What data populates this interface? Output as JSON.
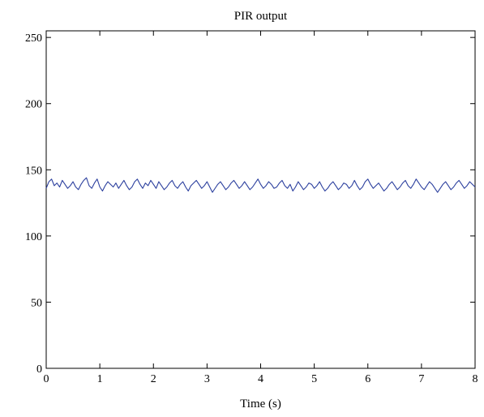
{
  "chart_data": {
    "type": "line",
    "title": "PIR output",
    "xlabel": "Time (s)",
    "ylabel": "",
    "xlim": [
      0,
      8
    ],
    "ylim": [
      0,
      255
    ],
    "xticks": [
      "0",
      "1",
      "2",
      "3",
      "4",
      "5",
      "6",
      "7",
      "8"
    ],
    "yticks": [
      "0",
      "50",
      "100",
      "150",
      "200",
      "250"
    ],
    "grid": false,
    "legend": "none",
    "series": [
      {
        "color": "#2b3f9e",
        "x": [
          0.0,
          0.05,
          0.1,
          0.15,
          0.2,
          0.25,
          0.3,
          0.35,
          0.4,
          0.45,
          0.5,
          0.55,
          0.6,
          0.65,
          0.7,
          0.75,
          0.8,
          0.85,
          0.9,
          0.95,
          1.0,
          1.05,
          1.1,
          1.15,
          1.2,
          1.25,
          1.3,
          1.35,
          1.4,
          1.45,
          1.5,
          1.55,
          1.6,
          1.65,
          1.7,
          1.75,
          1.8,
          1.85,
          1.9,
          1.95,
          2.0,
          2.05,
          2.1,
          2.15,
          2.2,
          2.25,
          2.3,
          2.35,
          2.4,
          2.45,
          2.5,
          2.55,
          2.6,
          2.65,
          2.7,
          2.75,
          2.8,
          2.85,
          2.9,
          2.95,
          3.0,
          3.05,
          3.1,
          3.15,
          3.2,
          3.25,
          3.3,
          3.35,
          3.4,
          3.45,
          3.5,
          3.55,
          3.6,
          3.65,
          3.7,
          3.75,
          3.8,
          3.85,
          3.9,
          3.95,
          4.0,
          4.05,
          4.1,
          4.15,
          4.2,
          4.25,
          4.3,
          4.35,
          4.4,
          4.45,
          4.5,
          4.55,
          4.6,
          4.65,
          4.7,
          4.75,
          4.8,
          4.85,
          4.9,
          4.95,
          5.0,
          5.05,
          5.1,
          5.15,
          5.2,
          5.25,
          5.3,
          5.35,
          5.4,
          5.45,
          5.5,
          5.55,
          5.6,
          5.65,
          5.7,
          5.75,
          5.8,
          5.85,
          5.9,
          5.95,
          6.0,
          6.05,
          6.1,
          6.15,
          6.2,
          6.25,
          6.3,
          6.35,
          6.4,
          6.45,
          6.5,
          6.55,
          6.6,
          6.65,
          6.7,
          6.75,
          6.8,
          6.85,
          6.9,
          6.95,
          7.0,
          7.05,
          7.1,
          7.15,
          7.2,
          7.25,
          7.3,
          7.35,
          7.4,
          7.45,
          7.5,
          7.55,
          7.6,
          7.65,
          7.7,
          7.75,
          7.8,
          7.85,
          7.9,
          7.95,
          8.0
        ],
        "values": [
          136,
          141,
          143,
          138,
          140,
          137,
          142,
          139,
          136,
          138,
          141,
          137,
          135,
          139,
          142,
          144,
          138,
          136,
          140,
          143,
          137,
          134,
          138,
          141,
          139,
          137,
          140,
          136,
          139,
          142,
          138,
          135,
          137,
          141,
          143,
          139,
          136,
          140,
          138,
          142,
          139,
          136,
          141,
          138,
          135,
          137,
          140,
          142,
          138,
          136,
          139,
          141,
          137,
          134,
          138,
          140,
          142,
          139,
          136,
          138,
          141,
          137,
          133,
          136,
          139,
          141,
          138,
          135,
          137,
          140,
          142,
          139,
          136,
          138,
          141,
          138,
          135,
          137,
          140,
          143,
          139,
          136,
          138,
          141,
          139,
          136,
          137,
          140,
          142,
          138,
          136,
          139,
          134,
          137,
          141,
          138,
          135,
          137,
          140,
          139,
          136,
          138,
          141,
          137,
          134,
          136,
          139,
          141,
          138,
          135,
          137,
          140,
          139,
          136,
          138,
          142,
          138,
          135,
          137,
          141,
          143,
          139,
          136,
          138,
          140,
          137,
          134,
          136,
          139,
          141,
          138,
          135,
          137,
          140,
          142,
          138,
          136,
          139,
          143,
          140,
          137,
          135,
          138,
          141,
          139,
          136,
          133,
          136,
          139,
          141,
          138,
          135,
          137,
          140,
          142,
          139,
          136,
          138,
          141,
          139,
          137
        ]
      }
    ]
  }
}
